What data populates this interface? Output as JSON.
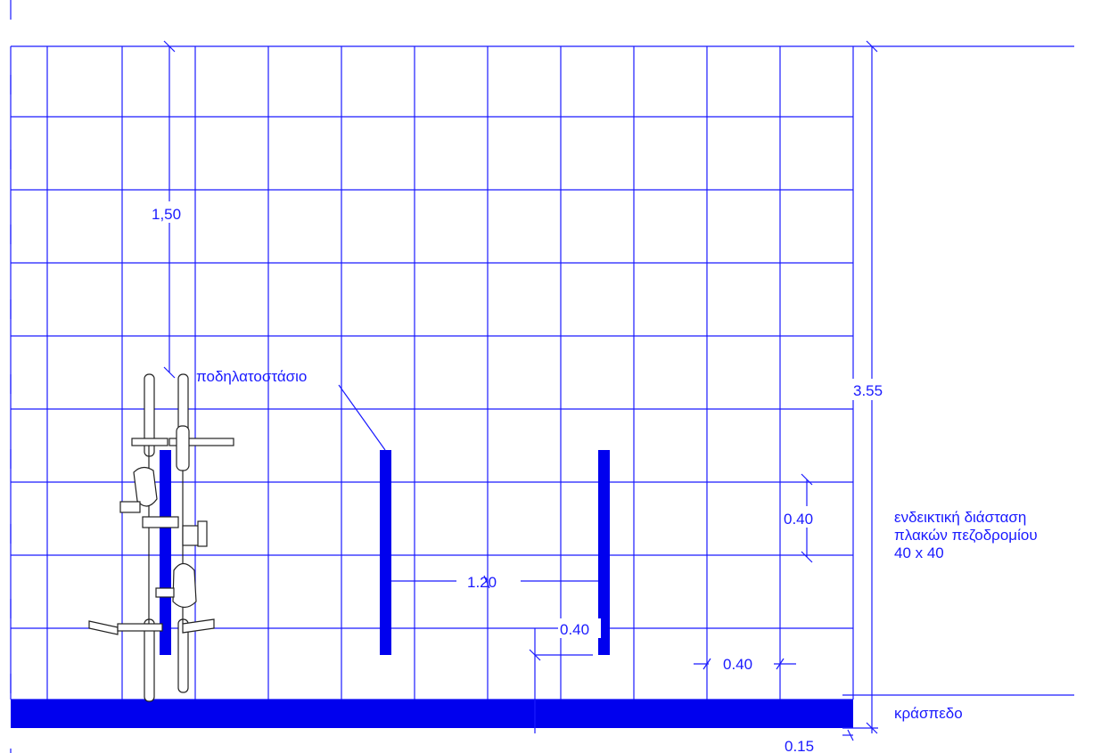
{
  "labels": {
    "rack": "ποδηλατοστάσιο",
    "curb": "κράσπεδο",
    "note_line1": "ενδεικτική διάσταση",
    "note_line2": "πλακών πεζοδρομίου",
    "note_line3": "40 x 40"
  },
  "dimensions": {
    "depth_bike": "1,50",
    "total_width": "3.55",
    "tile_vertical": "0.40",
    "rack_spacing": "1.20",
    "rack_offset": "0.40",
    "tile_horizontal": "0.40",
    "curb_width": "0.15"
  },
  "colors": {
    "drawing": "#1a1aff",
    "bicycle_outline": "#222222",
    "background": "#ffffff"
  }
}
